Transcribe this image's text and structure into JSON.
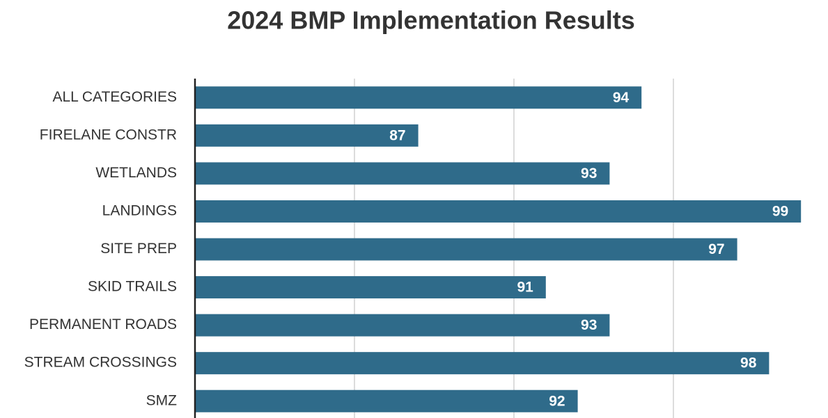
{
  "chart_data": {
    "type": "barh",
    "title": "2024 BMP Implementation Results",
    "categories": [
      "ALL CATEGORIES",
      "FIRELANE CONSTR",
      "WETLANDS",
      "LANDINGS",
      "SITE PREP",
      "SKID TRAILS",
      "PERMANENT ROADS",
      "STREAM CROSSINGS",
      "SMZ"
    ],
    "values": [
      94,
      87,
      93,
      99,
      97,
      91,
      93,
      98,
      92
    ],
    "color": "#2f6b8a",
    "xlim": [
      80,
      100
    ],
    "xticks": [
      85,
      90,
      95
    ],
    "grid": true
  }
}
